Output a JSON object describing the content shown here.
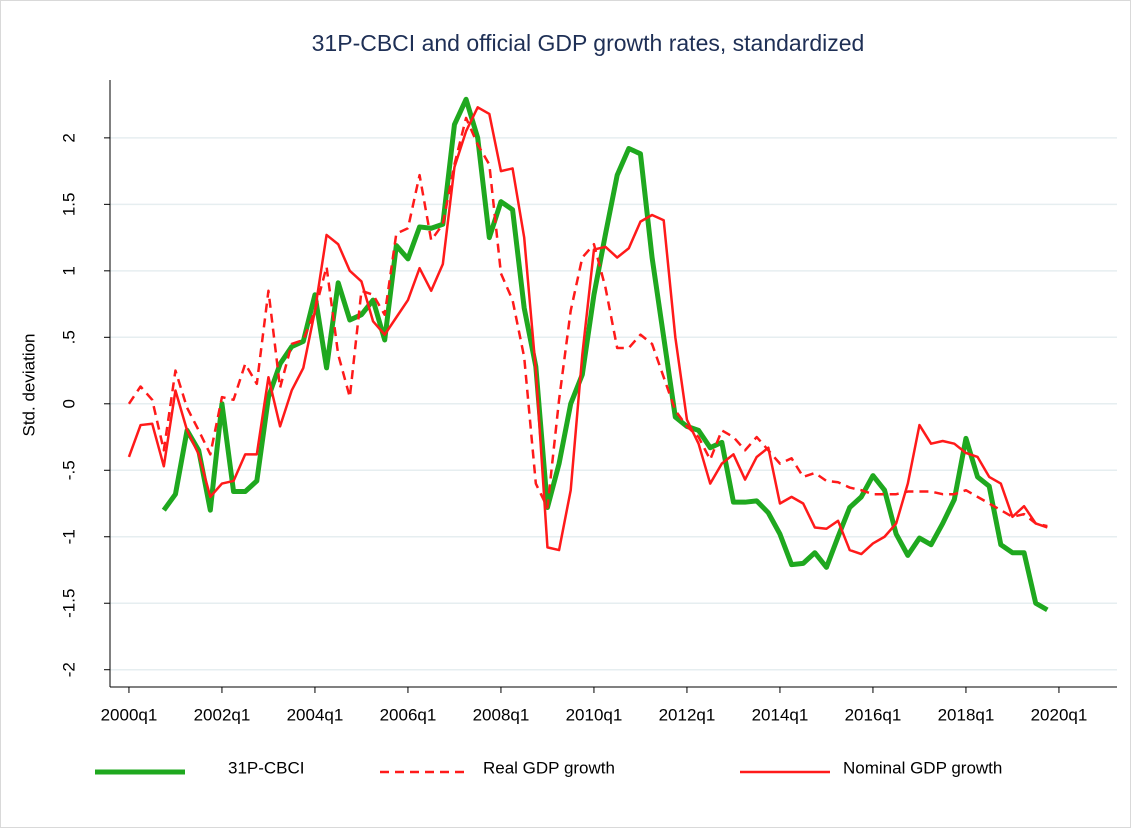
{
  "chart_data": {
    "type": "line",
    "title": "31P-CBCI and official GDP growth rates, standardized",
    "y_label": "Std. deviation",
    "categories": [
      "2000q1",
      null,
      null,
      null,
      null,
      null,
      null,
      null,
      "2002q1",
      null,
      null,
      null,
      null,
      null,
      null,
      null,
      "2004q1",
      null,
      null,
      null,
      null,
      null,
      null,
      null,
      "2006q1",
      null,
      null,
      null,
      null,
      null,
      null,
      null,
      "2008q1",
      null,
      null,
      null,
      null,
      null,
      null,
      null,
      "2010q1",
      null,
      null,
      null,
      null,
      null,
      null,
      null,
      "2012q1",
      null,
      null,
      null,
      null,
      null,
      null,
      null,
      "2014q1",
      null,
      null,
      null,
      null,
      null,
      null,
      null,
      "2016q1",
      null,
      null,
      null,
      null,
      null,
      null,
      null,
      "2018q1",
      null,
      null,
      null,
      null,
      null,
      null,
      null,
      "2020q1"
    ],
    "ylim": [
      -2.13,
      2.36
    ],
    "yticks": [
      {
        "value": -2,
        "label": "-2"
      },
      {
        "value": -1.5,
        "label": "-1.5"
      },
      {
        "value": -1,
        "label": "-1"
      },
      {
        "value": -0.5,
        "label": "-.5"
      },
      0,
      {
        "value": 0.5,
        "label": ".5"
      },
      1,
      1.5,
      2
    ],
    "grid": true,
    "series": [
      {
        "name": "31P-CBCI",
        "color": "#1fa81f",
        "dash": "solid",
        "width": 5,
        "values": [
          null,
          null,
          null,
          -0.8,
          -0.68,
          -0.2,
          -0.35,
          -0.8,
          0.0,
          -0.66,
          -0.66,
          -0.58,
          0.05,
          0.3,
          0.43,
          0.47,
          0.82,
          0.27,
          0.91,
          0.63,
          0.67,
          0.78,
          0.48,
          1.19,
          1.09,
          1.33,
          1.32,
          1.35,
          2.1,
          2.29,
          2.0,
          1.25,
          1.52,
          1.46,
          0.72,
          0.28,
          -0.78,
          -0.45,
          0.0,
          0.22,
          0.82,
          1.28,
          1.72,
          1.92,
          1.88,
          1.1,
          0.5,
          -0.1,
          -0.17,
          -0.2,
          -0.33,
          -0.29,
          -0.74,
          -0.74,
          -0.73,
          -0.82,
          -0.98,
          -1.21,
          -1.2,
          -1.12,
          -1.23,
          -1.0,
          -0.78,
          -0.7,
          -0.54,
          -0.65,
          -0.98,
          -1.14,
          -1.01,
          -1.06,
          -0.9,
          -0.72,
          -0.26,
          -0.55,
          -0.62,
          -1.06,
          -1.12,
          -1.12,
          -1.5,
          -1.55,
          null
        ]
      },
      {
        "name": "Real GDP growth",
        "color": "#ff1a1a",
        "dash": "dashed",
        "width": 2.5,
        "values": [
          0.0,
          0.13,
          0.03,
          -0.35,
          0.25,
          -0.03,
          -0.2,
          -0.38,
          0.05,
          0.03,
          0.3,
          0.15,
          0.85,
          0.12,
          0.45,
          0.48,
          0.7,
          1.03,
          0.37,
          0.05,
          0.85,
          0.82,
          0.67,
          1.28,
          1.32,
          1.72,
          1.23,
          1.35,
          1.8,
          2.15,
          1.95,
          1.8,
          0.98,
          0.78,
          0.35,
          -0.6,
          -0.78,
          0.03,
          0.7,
          1.1,
          1.2,
          0.87,
          0.42,
          0.42,
          0.52,
          0.45,
          0.2,
          -0.05,
          -0.17,
          -0.25,
          -0.42,
          -0.2,
          -0.25,
          -0.35,
          -0.25,
          -0.35,
          -0.45,
          -0.41,
          -0.55,
          -0.52,
          -0.58,
          -0.59,
          -0.63,
          -0.65,
          -0.68,
          -0.68,
          -0.68,
          -0.66,
          -0.66,
          -0.66,
          -0.68,
          -0.68,
          -0.65,
          -0.7,
          -0.75,
          -0.8,
          -0.85,
          -0.83,
          -0.9,
          -0.92,
          null
        ]
      },
      {
        "name": "Nominal GDP growth",
        "color": "#ff1a1a",
        "dash": "solid",
        "width": 2.5,
        "values": [
          -0.4,
          -0.16,
          -0.15,
          -0.47,
          0.1,
          -0.2,
          -0.38,
          -0.7,
          -0.6,
          -0.58,
          -0.38,
          -0.38,
          0.2,
          -0.17,
          0.1,
          0.27,
          0.7,
          1.27,
          1.2,
          1.0,
          0.92,
          0.62,
          0.52,
          0.65,
          0.78,
          1.02,
          0.85,
          1.05,
          1.78,
          2.05,
          2.23,
          2.18,
          1.75,
          1.77,
          1.25,
          0.25,
          -1.08,
          -1.1,
          -0.65,
          0.37,
          1.16,
          1.18,
          1.1,
          1.17,
          1.37,
          1.42,
          1.38,
          0.5,
          -0.12,
          -0.3,
          -0.6,
          -0.45,
          -0.38,
          -0.57,
          -0.4,
          -0.33,
          -0.75,
          -0.7,
          -0.75,
          -0.93,
          -0.94,
          -0.88,
          -1.1,
          -1.13,
          -1.05,
          -1.0,
          -0.9,
          -0.6,
          -0.16,
          -0.3,
          -0.28,
          -0.3,
          -0.37,
          -0.4,
          -0.55,
          -0.6,
          -0.85,
          -0.77,
          -0.9,
          -0.93,
          null
        ]
      }
    ]
  }
}
